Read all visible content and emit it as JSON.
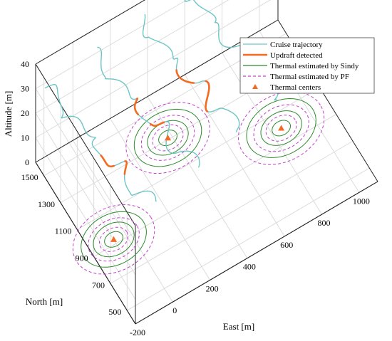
{
  "chart_data": {
    "type": "line",
    "projection": "3d",
    "title": "",
    "axes": {
      "x": {
        "label": "East [m]",
        "range": [
          -200,
          1100
        ],
        "ticks": [
          -200,
          0,
          200,
          400,
          600,
          800,
          1000
        ]
      },
      "y": {
        "label": "North [m]",
        "range": [
          400,
          1600
        ],
        "ticks": [
          500,
          700,
          900,
          1100,
          1300,
          1500
        ]
      },
      "z": {
        "label": "Altitude [m]",
        "range": [
          0,
          40
        ],
        "ticks": [
          0,
          10,
          20,
          30,
          40
        ]
      }
    },
    "grid": true,
    "legend": {
      "placement": "top-right",
      "entries": [
        {
          "label": "Cruise trajectory",
          "style": "line",
          "color": "#6cc6c4"
        },
        {
          "label": "Updraft detected",
          "style": "thick-line",
          "color": "#f26b21"
        },
        {
          "label": "Thermal estimated by Sindy",
          "style": "line",
          "color": "#2e8b2e"
        },
        {
          "label": "Thermal estimated by PF",
          "style": "dashed",
          "color": "#c040c8"
        },
        {
          "label": "Thermal centers",
          "style": "triangle",
          "color": "#f26b21"
        }
      ]
    },
    "cruise_trajectories": [
      {
        "start": [
          -150,
          1600,
          28
        ],
        "end": [
          150,
          1000,
          0
        ]
      },
      {
        "start": [
          100,
          1600,
          30
        ],
        "end": [
          420,
          1050,
          0
        ]
      },
      {
        "start": [
          350,
          1600,
          33
        ],
        "end": [
          680,
          1120,
          0
        ]
      },
      {
        "start": [
          600,
          1600,
          35
        ],
        "end": [
          920,
          1150,
          0
        ]
      }
    ],
    "updraft_segments": [
      {
        "trajectory": 0,
        "t": [
          0.56,
          0.64
        ]
      },
      {
        "trajectory": 0,
        "t": [
          0.69,
          0.76
        ]
      },
      {
        "trajectory": 1,
        "t": [
          0.4,
          0.5
        ]
      },
      {
        "trajectory": 1,
        "t": [
          0.56,
          0.64
        ]
      },
      {
        "trajectory": 2,
        "t": [
          0.44,
          0.53
        ]
      },
      {
        "trajectory": 2,
        "t": [
          0.62,
          0.74
        ]
      },
      {
        "trajectory": 3,
        "t": [
          0.6,
          0.7
        ]
      },
      {
        "trajectory": 3,
        "t": [
          0.73,
          0.82
        ]
      }
    ],
    "thermal_centers": [
      {
        "x": 380,
        "y": 1310
      },
      {
        "x": -80,
        "y": 930
      },
      {
        "x": 850,
        "y": 1000
      }
    ],
    "sindy_estimates": [
      {
        "x": 380,
        "y": 1310,
        "radii": [
          45,
          100,
          165
        ]
      },
      {
        "x": -80,
        "y": 930,
        "radii": [
          45,
          100,
          160
        ]
      },
      {
        "x": 850,
        "y": 1000,
        "radii": [
          45,
          100,
          170
        ]
      }
    ],
    "pf_estimates": [
      {
        "x": 380,
        "y": 1310,
        "radii": [
          75,
          130,
          205
        ]
      },
      {
        "x": -80,
        "y": 930,
        "radii": [
          70,
          125,
          200
        ]
      },
      {
        "x": 850,
        "y": 1000,
        "radii": [
          75,
          135,
          210
        ]
      }
    ]
  }
}
